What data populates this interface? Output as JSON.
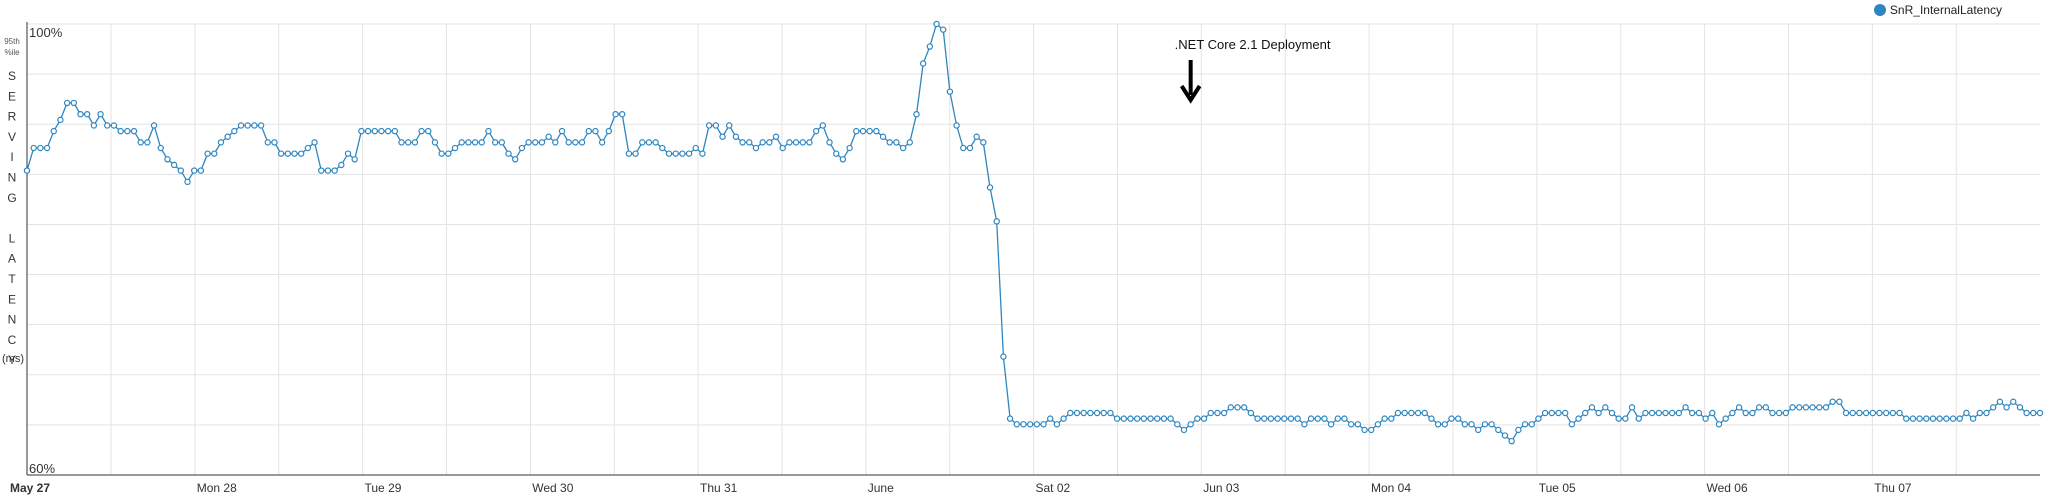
{
  "chart_data": {
    "type": "line",
    "ylabel_top": "95th",
    "ylabel_sub": "%ile",
    "ylabel_letters": [
      "S",
      "E",
      "R",
      "V",
      "I",
      "N",
      "G",
      "",
      "L",
      "A",
      "T",
      "E",
      "N",
      "C",
      "Y"
    ],
    "ylabel_units": "(ms)",
    "y_top_label": "100%",
    "y_bottom_label": "60%",
    "ylim": [
      60,
      100
    ],
    "grid": true,
    "legend_position": "top-right",
    "x_tick_labels": [
      "May 27",
      "Mon 28",
      "Tue 29",
      "Wed 30",
      "Thu 31",
      "June",
      "Sat 02",
      "Jun 03",
      "Mon 04",
      "Tue 05",
      "Wed 06",
      "Thu 07"
    ],
    "annotation": {
      "text": ".NET Core 2.1 Deployment",
      "x_index": 174
    },
    "series": [
      {
        "name": "SnR_InternalLatency",
        "color": "#2e86c1",
        "values": [
          87.0,
          89.0,
          89.0,
          89.0,
          90.5,
          91.5,
          93.0,
          93.0,
          92.0,
          92.0,
          91.0,
          92.0,
          91.0,
          91.0,
          90.5,
          90.5,
          90.5,
          89.5,
          89.5,
          91.0,
          89.0,
          88.0,
          87.5,
          87.0,
          86.0,
          87.0,
          87.0,
          88.5,
          88.5,
          89.5,
          90.0,
          90.5,
          91.0,
          91.0,
          91.0,
          91.0,
          89.5,
          89.5,
          88.5,
          88.5,
          88.5,
          88.5,
          89.0,
          89.5,
          87.0,
          87.0,
          87.0,
          87.5,
          88.5,
          88.0,
          90.5,
          90.5,
          90.5,
          90.5,
          90.5,
          90.5,
          89.5,
          89.5,
          89.5,
          90.5,
          90.5,
          89.5,
          88.5,
          88.5,
          89.0,
          89.5,
          89.5,
          89.5,
          89.5,
          90.5,
          89.5,
          89.5,
          88.5,
          88.0,
          89.0,
          89.5,
          89.5,
          89.5,
          90.0,
          89.5,
          90.5,
          89.5,
          89.5,
          89.5,
          90.5,
          90.5,
          89.5,
          90.5,
          92.0,
          92.0,
          88.5,
          88.5,
          89.5,
          89.5,
          89.5,
          89.0,
          88.5,
          88.5,
          88.5,
          88.5,
          89.0,
          88.5,
          91.0,
          91.0,
          90.0,
          91.0,
          90.0,
          89.5,
          89.5,
          89.0,
          89.5,
          89.5,
          90.0,
          89.0,
          89.5,
          89.5,
          89.5,
          89.5,
          90.5,
          91.0,
          89.5,
          88.5,
          88.0,
          89.0,
          90.5,
          90.5,
          90.5,
          90.5,
          90.0,
          89.5,
          89.5,
          89.0,
          89.5,
          92.0,
          96.5,
          98.0,
          100.0,
          99.5,
          94.0,
          91.0,
          89.0,
          89.0,
          90.0,
          89.5,
          85.5,
          82.5,
          70.5,
          65.0,
          64.5,
          64.5,
          64.5,
          64.5,
          64.5,
          65.0,
          64.5,
          65.0,
          65.5,
          65.5,
          65.5,
          65.5,
          65.5,
          65.5,
          65.5,
          65.0,
          65.0,
          65.0,
          65.0,
          65.0,
          65.0,
          65.0,
          65.0,
          65.0,
          64.5,
          64.0,
          64.5,
          65.0,
          65.0,
          65.5,
          65.5,
          65.5,
          66.0,
          66.0,
          66.0,
          65.5,
          65.0,
          65.0,
          65.0,
          65.0,
          65.0,
          65.0,
          65.0,
          64.5,
          65.0,
          65.0,
          65.0,
          64.5,
          65.0,
          65.0,
          64.5,
          64.5,
          64.0,
          64.0,
          64.5,
          65.0,
          65.0,
          65.5,
          65.5,
          65.5,
          65.5,
          65.5,
          65.0,
          64.5,
          64.5,
          65.0,
          65.0,
          64.5,
          64.5,
          64.0,
          64.5,
          64.5,
          64.0,
          63.5,
          63.0,
          64.0,
          64.5,
          64.5,
          65.0,
          65.5,
          65.5,
          65.5,
          65.5,
          64.5,
          65.0,
          65.5,
          66.0,
          65.5,
          66.0,
          65.5,
          65.0,
          65.0,
          66.0,
          65.0,
          65.5,
          65.5,
          65.5,
          65.5,
          65.5,
          65.5,
          66.0,
          65.5,
          65.5,
          65.0,
          65.5,
          64.5,
          65.0,
          65.5,
          66.0,
          65.5,
          65.5,
          66.0,
          66.0,
          65.5,
          65.5,
          65.5,
          66.0,
          66.0,
          66.0,
          66.0,
          66.0,
          66.0,
          66.5,
          66.5,
          65.5,
          65.5,
          65.5,
          65.5,
          65.5,
          65.5,
          65.5,
          65.5,
          65.5,
          65.0,
          65.0,
          65.0,
          65.0,
          65.0,
          65.0,
          65.0,
          65.0,
          65.0,
          65.5,
          65.0,
          65.5,
          65.5,
          66.0,
          66.5,
          66.0,
          66.5,
          66.0,
          65.5,
          65.5,
          65.5
        ]
      }
    ]
  }
}
